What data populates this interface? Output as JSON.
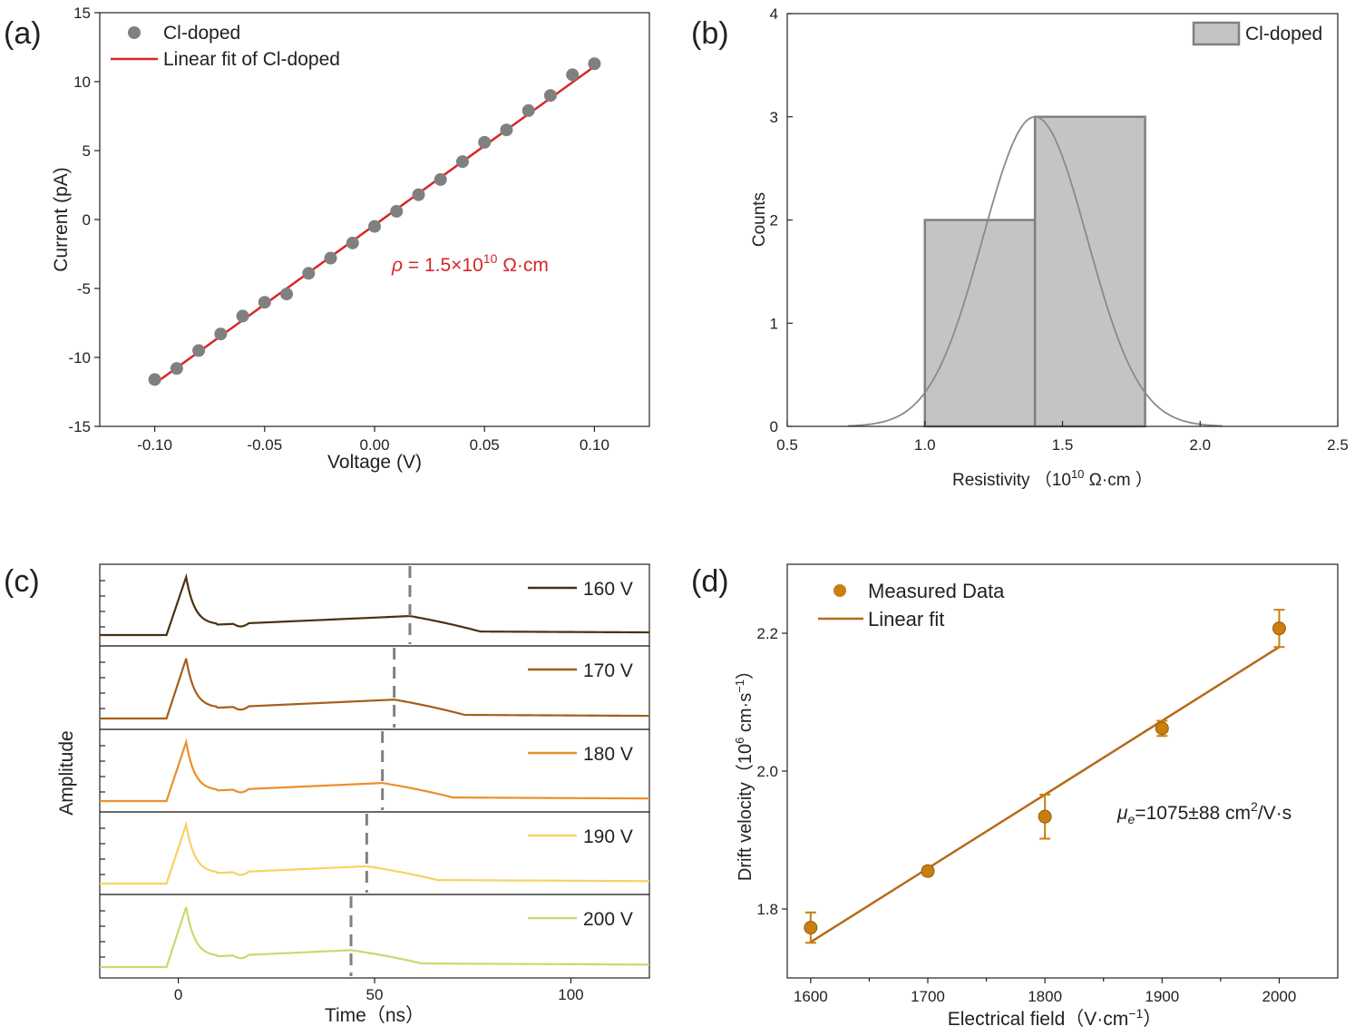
{
  "chart_data": [
    {
      "panel": "(a)",
      "type": "scatter",
      "xlabel": "Voltage (V)",
      "ylabel": "Current (pA)",
      "xlim": [
        -0.125,
        0.125
      ],
      "ylim": [
        -15,
        15
      ],
      "xticks": [
        -0.1,
        -0.05,
        0.0,
        0.05,
        0.1
      ],
      "xtick_labels": [
        "-0.10",
        "-0.05",
        "0.00",
        "0.05",
        "0.10"
      ],
      "yticks": [
        -15,
        -10,
        -5,
        0,
        5,
        10,
        15
      ],
      "ytick_labels": [
        "-15",
        "-10",
        "-5",
        "0",
        "5",
        "10",
        "15"
      ],
      "series": [
        {
          "name": "Cl-doped",
          "color": "#808080",
          "x": [
            -0.1,
            -0.09,
            -0.08,
            -0.07,
            -0.06,
            -0.05,
            -0.04,
            -0.03,
            -0.02,
            -0.01,
            0.0,
            0.01,
            0.02,
            0.03,
            0.04,
            0.05,
            0.06,
            0.07,
            0.08,
            0.09,
            0.1
          ],
          "y": [
            -11.6,
            -10.8,
            -9.5,
            -8.3,
            -7.0,
            -6.0,
            -5.4,
            -3.9,
            -2.8,
            -1.7,
            -0.5,
            0.6,
            1.8,
            2.9,
            4.2,
            5.6,
            6.5,
            7.9,
            9.0,
            10.5,
            11.3
          ]
        },
        {
          "name": "Linear fit of Cl-doped",
          "color": "#d62728",
          "x": [
            -0.1,
            0.1
          ],
          "y": [
            -11.9,
            11.1
          ]
        }
      ],
      "annotation": {
        "symbol": "ρ",
        "text_before": " = 1.5×10",
        "exponent": "10",
        "text_after": " Ω·cm",
        "color": "#d62728"
      }
    },
    {
      "panel": "(b)",
      "type": "bar",
      "xlabel_text": "Resistivity （10",
      "xlabel_exp": "10",
      "xlabel_after": " Ω·cm ）",
      "ylabel": "Counts",
      "xlim": [
        0.5,
        2.5
      ],
      "ylim": [
        0,
        4
      ],
      "xticks": [
        0.5,
        1.0,
        1.5,
        2.0,
        2.5
      ],
      "xtick_labels": [
        "0.5",
        "1.0",
        "1.5",
        "2.0",
        "2.5"
      ],
      "yticks": [
        0,
        1,
        2,
        3,
        4
      ],
      "ytick_labels": [
        "0",
        "1",
        "2",
        "3",
        "4"
      ],
      "bins": [
        {
          "from": 1.0,
          "to": 1.4,
          "count": 2
        },
        {
          "from": 1.4,
          "to": 1.8,
          "count": 3
        }
      ],
      "legend": "Cl-doped",
      "bar_color": "#c4c4c4",
      "edge_color": "#808080",
      "fit": {
        "type": "gaussian",
        "mean": 1.4,
        "sigma": 0.19,
        "amplitude": 3.0,
        "range": [
          0.72,
          2.08
        ]
      }
    },
    {
      "panel": "(c)",
      "type": "line",
      "xlabel": "Time（ns）",
      "ylabel": "Amplitude",
      "xlim": [
        -20,
        120
      ],
      "xticks": [
        0,
        50,
        100
      ],
      "xtick_labels": [
        "0",
        "50",
        "100"
      ],
      "series": [
        {
          "name": "160 V",
          "color": "#4a3110",
          "transit_ns": 59
        },
        {
          "name": "170 V",
          "color": "#a65e1b",
          "transit_ns": 55
        },
        {
          "name": "180 V",
          "color": "#ec8e2b",
          "transit_ns": 52
        },
        {
          "name": "190 V",
          "color": "#f6d265",
          "transit_ns": 48
        },
        {
          "name": "200 V",
          "color": "#c6db6f",
          "transit_ns": 44
        }
      ]
    },
    {
      "panel": "(d)",
      "type": "scatter",
      "xlabel": "Electrical field（V·cm",
      "xlabel_sup": "−1",
      "xlabel_after": "）",
      "ylabel": "Drift velocity（10",
      "ylabel_sup": "6",
      "ylabel_mid": " cm·s",
      "ylabel_sup2": "−1",
      "ylabel_after": "）",
      "xlim": [
        1580,
        2050
      ],
      "ylim": [
        1.7,
        2.3
      ],
      "xticks": [
        1600,
        1700,
        1800,
        1900,
        2000
      ],
      "xtick_labels": [
        "1600",
        "1700",
        "1800",
        "1900",
        "2000"
      ],
      "yticks": [
        1.8,
        2.0,
        2.2
      ],
      "ytick_labels": [
        "1.8",
        "2.0",
        "2.2"
      ],
      "series": [
        {
          "name": "Measured Data",
          "color": "#c87f10",
          "x": [
            1600,
            1700,
            1800,
            1900,
            2000
          ],
          "y": [
            1.773,
            1.855,
            1.934,
            2.062,
            2.207
          ],
          "yerr": [
            0.022,
            0.006,
            0.032,
            0.011,
            0.027
          ]
        },
        {
          "name": "Linear fit",
          "color": "#b8691a",
          "x": [
            1600,
            2000
          ],
          "y": [
            1.752,
            2.18
          ]
        }
      ],
      "annotation": {
        "symbol": "μ",
        "sub": "e",
        "text": "=1075±88 cm",
        "sup": "2",
        "after": "/V·s"
      }
    }
  ]
}
